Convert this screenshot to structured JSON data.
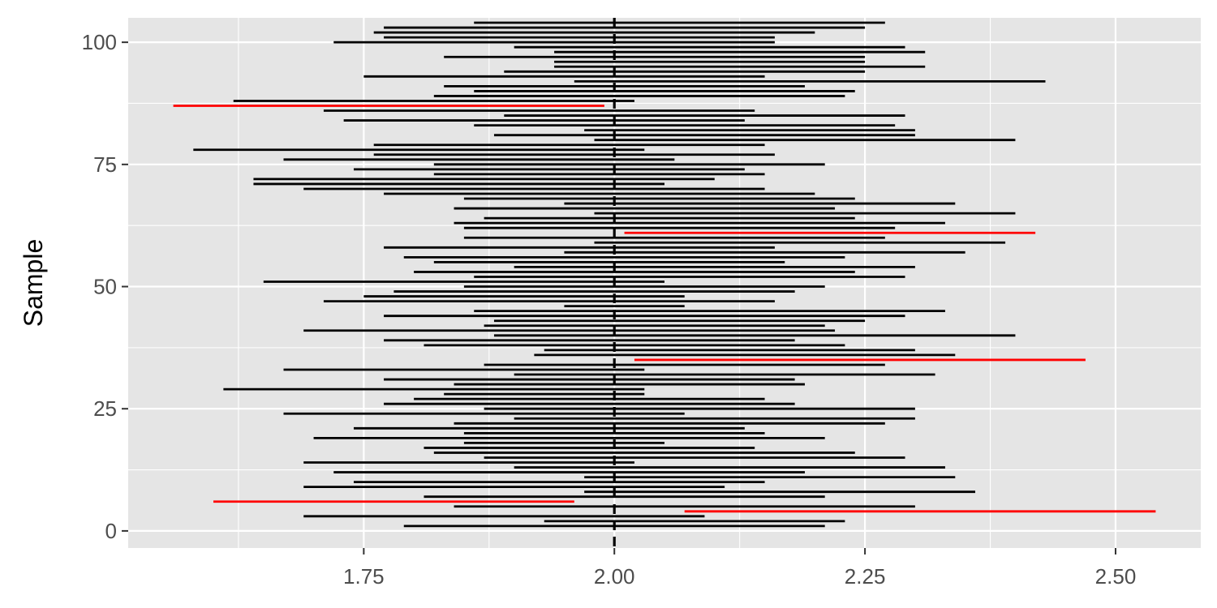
{
  "chart_data": {
    "type": "interval",
    "title": "",
    "xlabel": "",
    "ylabel": "Sample",
    "xlim": [
      1.515,
      2.585
    ],
    "ylim": [
      -3.5,
      105
    ],
    "x_ticks": [
      1.75,
      2.0,
      2.25,
      2.5
    ],
    "x_tick_labels": [
      "1.75",
      "2.00",
      "2.25",
      "2.50"
    ],
    "y_ticks": [
      0,
      25,
      50,
      75,
      100
    ],
    "y_tick_labels": [
      "0",
      "25",
      "50",
      "75",
      "100"
    ],
    "reference_line": {
      "x": 2.0,
      "style": "dashed",
      "color": "#000000"
    },
    "grid": true,
    "panel_background": "#e5e5e5",
    "colors": {
      "covers": "#000000",
      "misses": "#ff0000"
    },
    "intervals": [
      {
        "sample": 1,
        "low": 1.79,
        "high": 2.21
      },
      {
        "sample": 2,
        "low": 1.93,
        "high": 2.23
      },
      {
        "sample": 3,
        "low": 1.69,
        "high": 2.09
      },
      {
        "sample": 4,
        "low": 2.07,
        "high": 2.54,
        "covers": false
      },
      {
        "sample": 5,
        "low": 1.84,
        "high": 2.3
      },
      {
        "sample": 6,
        "low": 1.6,
        "high": 1.96,
        "covers": false
      },
      {
        "sample": 7,
        "low": 1.81,
        "high": 2.21
      },
      {
        "sample": 8,
        "low": 1.97,
        "high": 2.36
      },
      {
        "sample": 9,
        "low": 1.69,
        "high": 2.11
      },
      {
        "sample": 10,
        "low": 1.74,
        "high": 2.15
      },
      {
        "sample": 11,
        "low": 1.97,
        "high": 2.34
      },
      {
        "sample": 12,
        "low": 1.72,
        "high": 2.19
      },
      {
        "sample": 13,
        "low": 1.9,
        "high": 2.33
      },
      {
        "sample": 14,
        "low": 1.69,
        "high": 2.02
      },
      {
        "sample": 15,
        "low": 1.87,
        "high": 2.29
      },
      {
        "sample": 16,
        "low": 1.82,
        "high": 2.24
      },
      {
        "sample": 17,
        "low": 1.81,
        "high": 2.14
      },
      {
        "sample": 18,
        "low": 1.85,
        "high": 2.05
      },
      {
        "sample": 19,
        "low": 1.7,
        "high": 2.21
      },
      {
        "sample": 20,
        "low": 1.85,
        "high": 2.15
      },
      {
        "sample": 21,
        "low": 1.74,
        "high": 2.13
      },
      {
        "sample": 22,
        "low": 1.84,
        "high": 2.27
      },
      {
        "sample": 23,
        "low": 1.9,
        "high": 2.3
      },
      {
        "sample": 24,
        "low": 1.67,
        "high": 2.07
      },
      {
        "sample": 25,
        "low": 1.87,
        "high": 2.3
      },
      {
        "sample": 26,
        "low": 1.77,
        "high": 2.18
      },
      {
        "sample": 27,
        "low": 1.8,
        "high": 2.15
      },
      {
        "sample": 28,
        "low": 1.83,
        "high": 2.03
      },
      {
        "sample": 29,
        "low": 1.61,
        "high": 2.03
      },
      {
        "sample": 30,
        "low": 1.84,
        "high": 2.19
      },
      {
        "sample": 31,
        "low": 1.77,
        "high": 2.18
      },
      {
        "sample": 32,
        "low": 1.9,
        "high": 2.32
      },
      {
        "sample": 33,
        "low": 1.67,
        "high": 2.03
      },
      {
        "sample": 34,
        "low": 1.87,
        "high": 2.27
      },
      {
        "sample": 35,
        "low": 2.02,
        "high": 2.47,
        "covers": false
      },
      {
        "sample": 36,
        "low": 1.92,
        "high": 2.34
      },
      {
        "sample": 37,
        "low": 1.93,
        "high": 2.3
      },
      {
        "sample": 38,
        "low": 1.81,
        "high": 2.23
      },
      {
        "sample": 39,
        "low": 1.77,
        "high": 2.18
      },
      {
        "sample": 40,
        "low": 1.88,
        "high": 2.4
      },
      {
        "sample": 41,
        "low": 1.69,
        "high": 2.22
      },
      {
        "sample": 42,
        "low": 1.87,
        "high": 2.21
      },
      {
        "sample": 43,
        "low": 1.88,
        "high": 2.25
      },
      {
        "sample": 44,
        "low": 1.77,
        "high": 2.29
      },
      {
        "sample": 45,
        "low": 1.86,
        "high": 2.33
      },
      {
        "sample": 46,
        "low": 1.95,
        "high": 2.07
      },
      {
        "sample": 47,
        "low": 1.71,
        "high": 2.16
      },
      {
        "sample": 48,
        "low": 1.75,
        "high": 2.07
      },
      {
        "sample": 49,
        "low": 1.78,
        "high": 2.18
      },
      {
        "sample": 50,
        "low": 1.85,
        "high": 2.21
      },
      {
        "sample": 51,
        "low": 1.65,
        "high": 2.05
      },
      {
        "sample": 52,
        "low": 1.86,
        "high": 2.29
      },
      {
        "sample": 53,
        "low": 1.8,
        "high": 2.24
      },
      {
        "sample": 54,
        "low": 1.9,
        "high": 2.3
      },
      {
        "sample": 55,
        "low": 1.82,
        "high": 2.17
      },
      {
        "sample": 56,
        "low": 1.79,
        "high": 2.23
      },
      {
        "sample": 57,
        "low": 1.95,
        "high": 2.35
      },
      {
        "sample": 58,
        "low": 1.77,
        "high": 2.16
      },
      {
        "sample": 59,
        "low": 1.98,
        "high": 2.39
      },
      {
        "sample": 60,
        "low": 1.85,
        "high": 2.27
      },
      {
        "sample": 61,
        "low": 2.01,
        "high": 2.42,
        "covers": false
      },
      {
        "sample": 62,
        "low": 1.85,
        "high": 2.28
      },
      {
        "sample": 63,
        "low": 1.84,
        "high": 2.33
      },
      {
        "sample": 64,
        "low": 1.87,
        "high": 2.24
      },
      {
        "sample": 65,
        "low": 1.98,
        "high": 2.4
      },
      {
        "sample": 66,
        "low": 1.84,
        "high": 2.22
      },
      {
        "sample": 67,
        "low": 1.95,
        "high": 2.34
      },
      {
        "sample": 68,
        "low": 1.85,
        "high": 2.24
      },
      {
        "sample": 69,
        "low": 1.77,
        "high": 2.2
      },
      {
        "sample": 70,
        "low": 1.69,
        "high": 2.15
      },
      {
        "sample": 71,
        "low": 1.64,
        "high": 2.05
      },
      {
        "sample": 72,
        "low": 1.64,
        "high": 2.1
      },
      {
        "sample": 73,
        "low": 1.82,
        "high": 2.15
      },
      {
        "sample": 74,
        "low": 1.74,
        "high": 2.13
      },
      {
        "sample": 75,
        "low": 1.82,
        "high": 2.21
      },
      {
        "sample": 76,
        "low": 1.67,
        "high": 2.06
      },
      {
        "sample": 77,
        "low": 1.76,
        "high": 2.16
      },
      {
        "sample": 78,
        "low": 1.58,
        "high": 2.03
      },
      {
        "sample": 79,
        "low": 1.76,
        "high": 2.15
      },
      {
        "sample": 80,
        "low": 1.98,
        "high": 2.4
      },
      {
        "sample": 81,
        "low": 1.88,
        "high": 2.3
      },
      {
        "sample": 82,
        "low": 1.97,
        "high": 2.3
      },
      {
        "sample": 83,
        "low": 1.86,
        "high": 2.28
      },
      {
        "sample": 84,
        "low": 1.73,
        "high": 2.13
      },
      {
        "sample": 85,
        "low": 1.89,
        "high": 2.29
      },
      {
        "sample": 86,
        "low": 1.71,
        "high": 2.14
      },
      {
        "sample": 87,
        "low": 1.56,
        "high": 1.99,
        "covers": false
      },
      {
        "sample": 88,
        "low": 1.62,
        "high": 2.02
      },
      {
        "sample": 89,
        "low": 1.82,
        "high": 2.23
      },
      {
        "sample": 90,
        "low": 1.86,
        "high": 2.24
      },
      {
        "sample": 91,
        "low": 1.83,
        "high": 2.19
      },
      {
        "sample": 92,
        "low": 1.96,
        "high": 2.43
      },
      {
        "sample": 93,
        "low": 1.75,
        "high": 2.15
      },
      {
        "sample": 94,
        "low": 1.89,
        "high": 2.25
      },
      {
        "sample": 95,
        "low": 1.94,
        "high": 2.31
      },
      {
        "sample": 96,
        "low": 1.94,
        "high": 2.25
      },
      {
        "sample": 97,
        "low": 1.83,
        "high": 2.25
      },
      {
        "sample": 98,
        "low": 1.94,
        "high": 2.31
      },
      {
        "sample": 99,
        "low": 1.9,
        "high": 2.29
      },
      {
        "sample": 100,
        "low": 1.72,
        "high": 2.16
      },
      {
        "sample": 101,
        "low": 1.77,
        "high": 2.16
      },
      {
        "sample": 102,
        "low": 1.76,
        "high": 2.2
      },
      {
        "sample": 103,
        "low": 1.77,
        "high": 2.25
      },
      {
        "sample": 104,
        "low": 1.86,
        "high": 2.27
      }
    ]
  }
}
